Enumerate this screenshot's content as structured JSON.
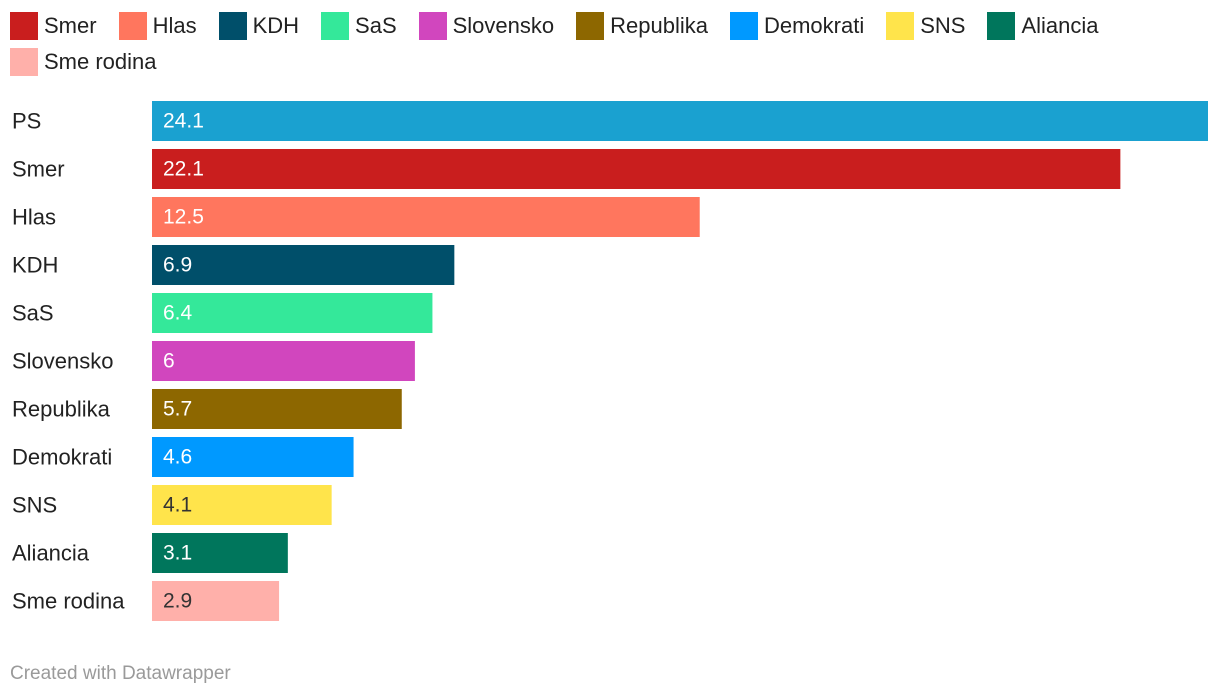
{
  "chart_data": {
    "type": "bar",
    "orientation": "horizontal",
    "categories": [
      "PS",
      "Smer",
      "Hlas",
      "KDH",
      "SaS",
      "Slovensko",
      "Republika",
      "Demokrati",
      "SNS",
      "Aliancia",
      "Sme rodina"
    ],
    "values": [
      24.1,
      22.1,
      12.5,
      6.9,
      6.4,
      6,
      5.7,
      4.6,
      4.1,
      3.1,
      2.9
    ],
    "value_labels": [
      "24.1",
      "22.1",
      "12.5",
      "6.9",
      "6.4",
      "6",
      "5.7",
      "4.6",
      "4.1",
      "3.1",
      "2.9"
    ],
    "colors": [
      "#1aa1d0",
      "#c91e1e",
      "#ff765e",
      "#004f6a",
      "#34e89a",
      "#d146be",
      "#8d6700",
      "#0099ff",
      "#ffe44b",
      "#00765c",
      "#ffb0aa"
    ],
    "label_dark": [
      false,
      false,
      false,
      false,
      false,
      false,
      false,
      false,
      true,
      false,
      true
    ],
    "xlim": [
      0,
      24.1
    ],
    "title": "",
    "xlabel": "",
    "ylabel": "",
    "legend": [
      {
        "label": "Smer",
        "color": "#c91e1e"
      },
      {
        "label": "Hlas",
        "color": "#ff765e"
      },
      {
        "label": "KDH",
        "color": "#004f6a"
      },
      {
        "label": "SaS",
        "color": "#34e89a"
      },
      {
        "label": "Slovensko",
        "color": "#d146be"
      },
      {
        "label": "Republika",
        "color": "#8d6700"
      },
      {
        "label": "Demokrati",
        "color": "#0099ff"
      },
      {
        "label": "SNS",
        "color": "#ffe44b"
      },
      {
        "label": "Aliancia",
        "color": "#00765c"
      },
      {
        "label": "Sme rodina",
        "color": "#ffb0aa"
      }
    ],
    "legend_position": "top-left"
  },
  "footer": {
    "credit": "Created with Datawrapper"
  }
}
